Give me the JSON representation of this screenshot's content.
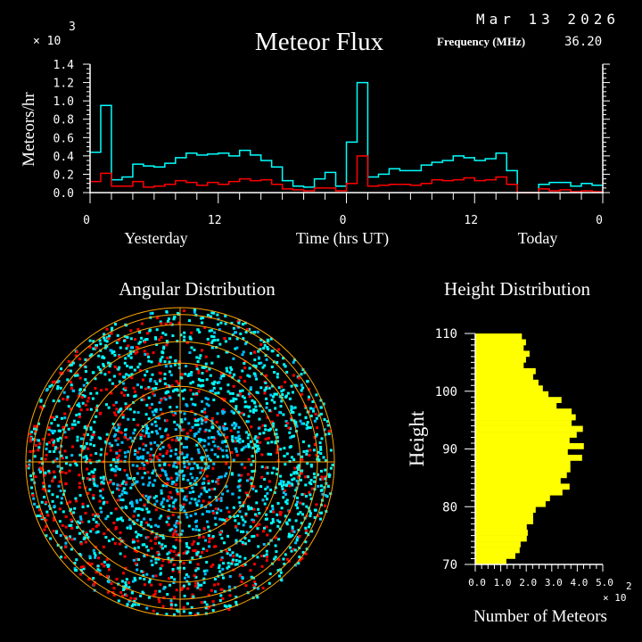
{
  "header": {
    "title": "Meteor Flux",
    "date": "Mar 13 2026",
    "frequency_label": "Frequency (MHz)",
    "frequency_value": "36.20"
  },
  "colors": {
    "background": "#000000",
    "axes": "#ffffff",
    "series_total": "#00ffff",
    "series_secondary": "#ff0000",
    "height_bars": "#ffff00",
    "grid_polar": "#ffa500",
    "points_cyan": "#00ffff",
    "points_blue": "#00bfff",
    "points_red": "#ff0000"
  },
  "chart_data": [
    {
      "type": "line",
      "step": true,
      "ylabel": "Meteors/hr",
      "xlabel": "Time (hrs UT)",
      "y_multiplier": "× 10",
      "y_multiplier_exp": "3",
      "day_labels": [
        "Yesterday",
        "Today"
      ],
      "xlim": [
        0,
        48
      ],
      "ylim": [
        0,
        1.4
      ],
      "x_tick_labels": [
        [
          "0",
          0
        ],
        [
          "12",
          12
        ],
        [
          "0",
          24
        ],
        [
          "12",
          36
        ],
        [
          "0",
          48
        ]
      ],
      "y_tick_labels": [
        "0.0",
        "0.2",
        "0.4",
        "0.6",
        "0.8",
        "1.0",
        "1.2",
        "1.4"
      ],
      "x": [
        0,
        1,
        2,
        3,
        4,
        5,
        6,
        7,
        8,
        9,
        10,
        11,
        12,
        13,
        14,
        15,
        16,
        17,
        18,
        19,
        20,
        21,
        22,
        23,
        24,
        25,
        26,
        27,
        28,
        29,
        30,
        31,
        32,
        33,
        34,
        35,
        36,
        37,
        38,
        39,
        40,
        41,
        42,
        43,
        44,
        45,
        46,
        47
      ],
      "series": [
        {
          "color": "#00ffff",
          "values": [
            0.44,
            0.95,
            0.14,
            0.17,
            0.31,
            0.29,
            0.28,
            0.32,
            0.38,
            0.43,
            0.41,
            0.42,
            0.43,
            0.4,
            0.46,
            0.41,
            0.35,
            0.28,
            0.13,
            0.07,
            0.06,
            0.15,
            0.22,
            0.07,
            0.55,
            1.2,
            0.17,
            0.2,
            0.26,
            0.24,
            0.24,
            0.3,
            0.33,
            0.35,
            0.4,
            0.38,
            0.35,
            0.37,
            0.43,
            0.24,
            0.0,
            0.0,
            0.09,
            0.11,
            0.11,
            0.07,
            0.1,
            0.08
          ]
        },
        {
          "color": "#ff0000",
          "values": [
            0.12,
            0.21,
            0.07,
            0.07,
            0.12,
            0.06,
            0.07,
            0.09,
            0.13,
            0.11,
            0.08,
            0.11,
            0.09,
            0.12,
            0.15,
            0.13,
            0.14,
            0.09,
            0.04,
            0.03,
            0.02,
            0.05,
            0.05,
            0.02,
            0.1,
            0.4,
            0.07,
            0.08,
            0.09,
            0.09,
            0.08,
            0.1,
            0.14,
            0.13,
            0.14,
            0.16,
            0.13,
            0.14,
            0.17,
            0.09,
            0.0,
            0.0,
            0.04,
            0.02,
            0.03,
            0.01,
            0.02,
            0.01
          ]
        }
      ]
    },
    {
      "type": "scatter",
      "projection": "polar (sky map)",
      "title": "Angular Distribution",
      "point_colors": [
        "#00ffff",
        "#00bfff",
        "#ff0000"
      ]
    },
    {
      "type": "bar",
      "orientation": "horizontal",
      "title": "Height Distribution",
      "ylabel": "Height",
      "xlabel": "Number of Meteors",
      "x_multiplier": "× 10",
      "x_multiplier_exp": "2",
      "ylim": [
        70,
        110
      ],
      "xlim": [
        0,
        5.0
      ],
      "x_tick_labels": [
        "0.0",
        "1.0",
        "2.0",
        "3.0",
        "4.0",
        "5.0"
      ],
      "y_tick_labels": [
        "70",
        "80",
        "90",
        "100",
        "110"
      ],
      "bin_bottoms": [
        109,
        108,
        107,
        106,
        105,
        104,
        103,
        102,
        101,
        100,
        99,
        98,
        97,
        96,
        95,
        94,
        93,
        92,
        91,
        90,
        89,
        88,
        87,
        86,
        85,
        84,
        83,
        82,
        81,
        80,
        79,
        78,
        77,
        76,
        75,
        74,
        73,
        72,
        71,
        70
      ],
      "values": [
        1.83,
        1.99,
        1.9,
        2.13,
        1.99,
        1.9,
        2.37,
        2.27,
        2.48,
        2.65,
        2.87,
        3.38,
        3.19,
        3.78,
        3.94,
        3.78,
        4.22,
        3.98,
        3.7,
        4.26,
        3.63,
        4.19,
        3.73,
        3.73,
        3.59,
        3.35,
        3.7,
        3.42,
        2.93,
        2.76,
        2.37,
        2.27,
        2.27,
        2.02,
        2.06,
        2.02,
        1.78,
        1.74,
        1.57,
        1.22
      ]
    }
  ]
}
